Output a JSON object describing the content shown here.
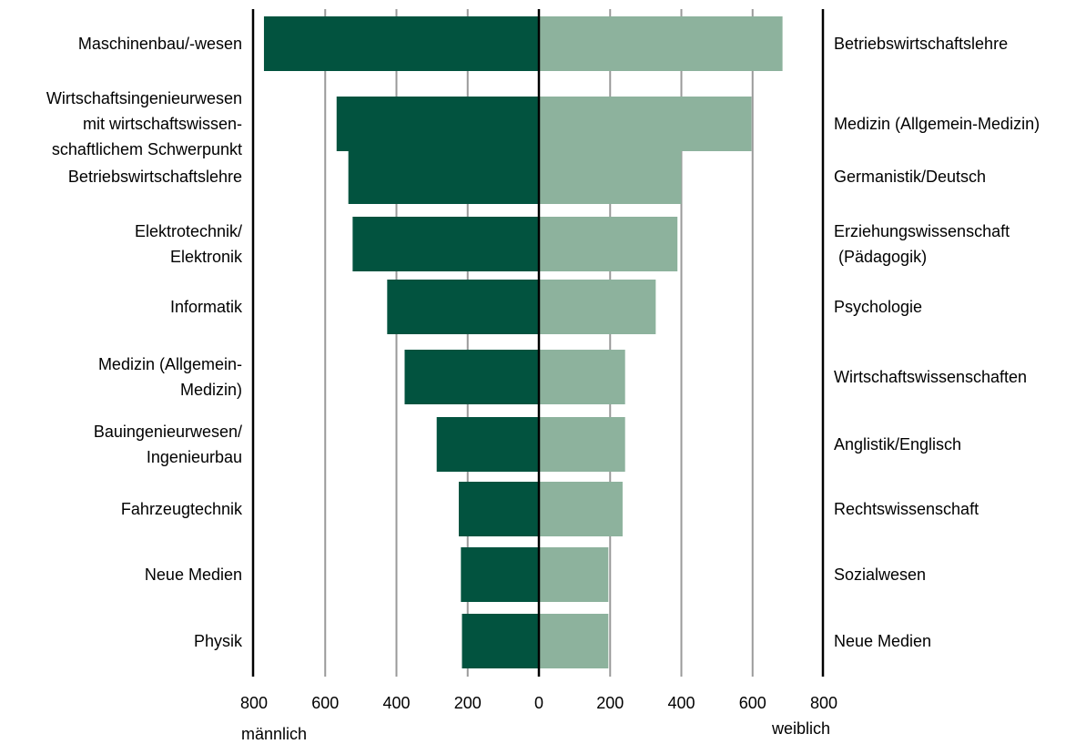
{
  "chart_data": {
    "type": "bar",
    "orientation": "horizontal",
    "layout": "butterfly",
    "colors": {
      "male": "#02533f",
      "female": "#8db29d"
    },
    "axis": {
      "ticks_left": [
        "800",
        "600",
        "400",
        "200"
      ],
      "tick_center": "0",
      "ticks_right": [
        "200",
        "400",
        "600",
        "800"
      ],
      "xlim": [
        0,
        800
      ],
      "grid": true
    },
    "left_label": "männlich",
    "right_label": "weiblich",
    "male": {
      "categories": [
        [
          "Maschinenbau/-wesen"
        ],
        [
          "Wirtschaftsingenieurwesen",
          "mit wirtschaftswissen-",
          "schaftlichem Schwerpunkt"
        ],
        [
          "Betriebswirtschaftslehre"
        ],
        [
          "Elektrotechnik/",
          "Elektronik"
        ],
        [
          "Informatik"
        ],
        [
          "Medizin (Allgemein-",
          "Medizin)"
        ],
        [
          "Bauingenieurwesen/",
          "Ingenieurbau"
        ],
        [
          "Fahrzeugtechnik"
        ],
        [
          "Neue Medien"
        ],
        [
          "Physik"
        ]
      ],
      "values": [
        772,
        568,
        535,
        523,
        426,
        377,
        287,
        225,
        219,
        216
      ]
    },
    "female": {
      "categories": [
        [
          "Betriebswirtschaftslehre"
        ],
        [
          "Medizin (Allgemein-Medizin)"
        ],
        [
          "Germanistik/Deutsch"
        ],
        [
          "Erziehungswissenschaft",
          " (Pädagogik)"
        ],
        [
          "Psychologie"
        ],
        [
          "Wirtschaftswissenschaften"
        ],
        [
          "Anglistik/Englisch"
        ],
        [
          "Rechtswissenschaft"
        ],
        [
          "Sozialwesen"
        ],
        [
          "Neue Medien"
        ]
      ],
      "values": [
        684,
        597,
        400,
        389,
        328,
        242,
        242,
        235,
        195,
        195
      ]
    }
  }
}
